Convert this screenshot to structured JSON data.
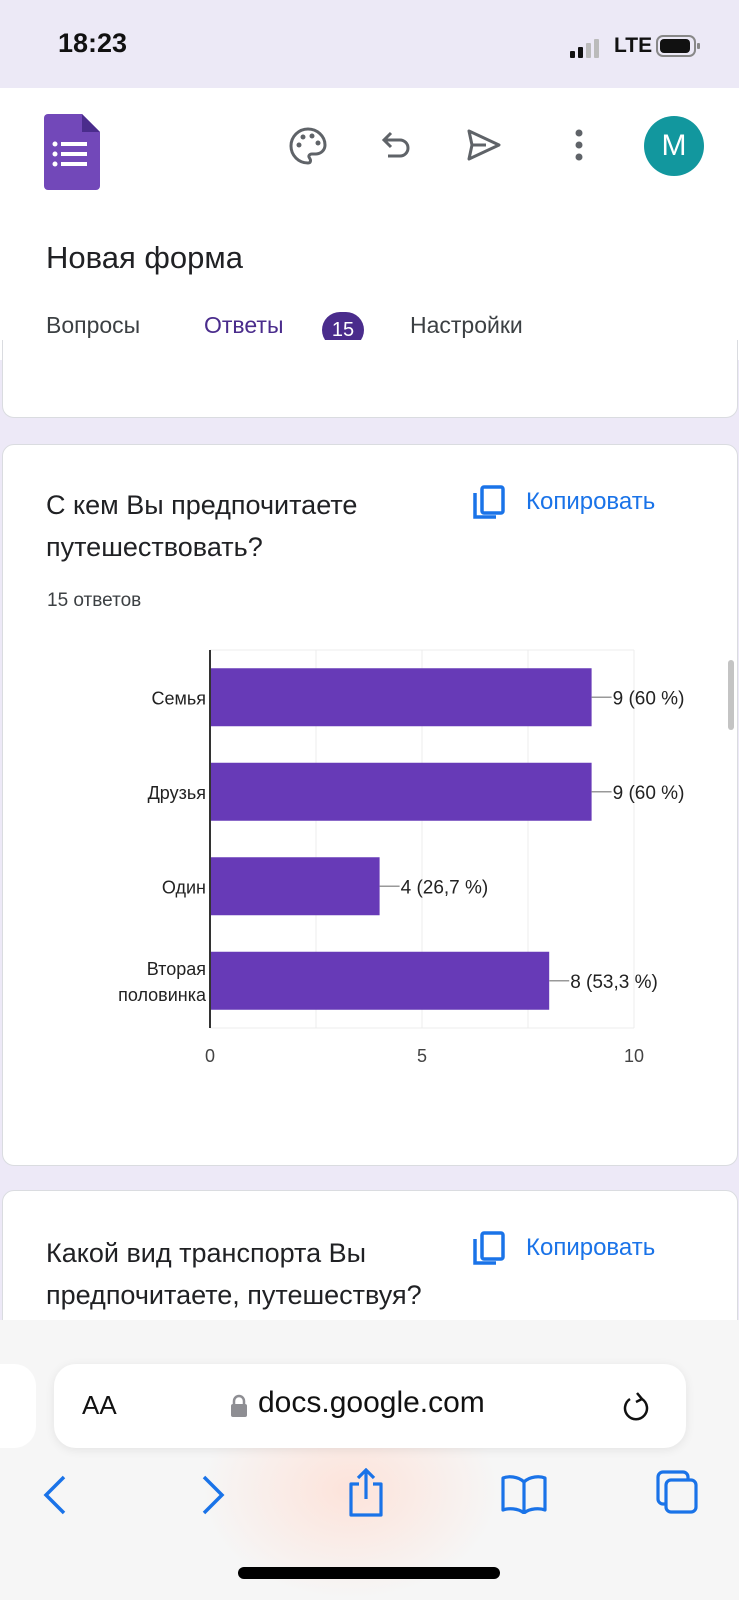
{
  "status_bar": {
    "time": "18:23",
    "network": "LTE"
  },
  "app": {
    "form_title": "Новая форма",
    "avatar_letter": "M",
    "avatar_color": "#12979e",
    "accent": "#4a2c8c",
    "icons": [
      "forms-logo-icon",
      "palette-icon",
      "undo-icon",
      "send-icon",
      "more-vert-icon"
    ]
  },
  "tabs": [
    {
      "label": "Вопросы"
    },
    {
      "label": "Ответы",
      "badge": "15",
      "active": true
    },
    {
      "label": "Настройки"
    }
  ],
  "cards": [
    {
      "title": "С кем Вы предпочитаете путешествовать?",
      "copy_label": "Копировать",
      "responses": "15 ответов"
    },
    {
      "title": "Какой вид транспорта Вы предпочитаете, путешествуя?",
      "copy_label": "Копировать"
    }
  ],
  "chart_data": {
    "type": "bar",
    "orientation": "horizontal",
    "bar_color": "#673ab7",
    "categories": [
      "Семья",
      "Друзья",
      "Один",
      "Вторая половинка"
    ],
    "values": [
      9,
      9,
      4,
      8
    ],
    "labels": [
      "9 (60 %)",
      "9 (60 %)",
      "4 (26,7 %)",
      "8 (53,3 %)"
    ],
    "xlim": [
      0,
      10
    ],
    "xticks": [
      "0",
      "5",
      "10"
    ],
    "grid": true
  },
  "browser": {
    "text_size": "AA",
    "url": "docs.google.com",
    "accent": "#1a73e8"
  }
}
